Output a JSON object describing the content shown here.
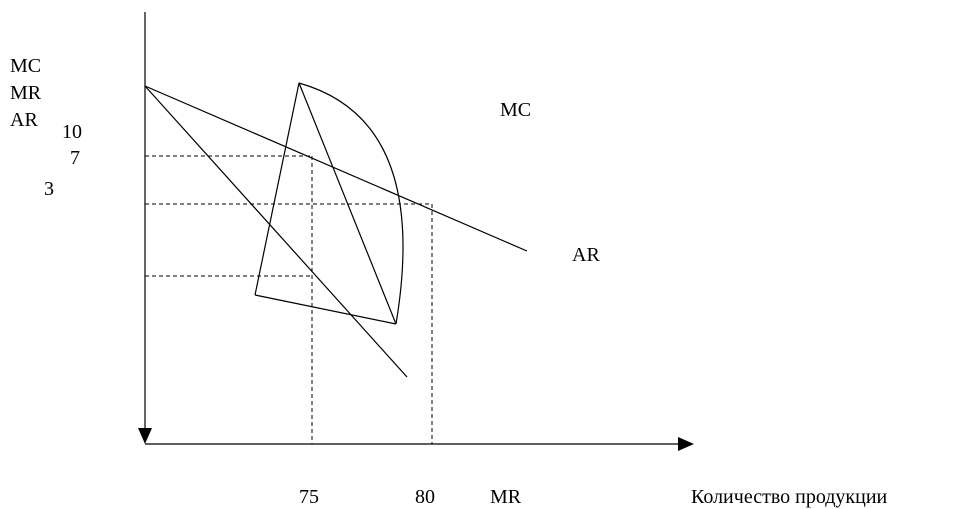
{
  "y_axis": {
    "label_lines": [
      "MC",
      "MR",
      "AR"
    ],
    "tick_labels": [
      "10",
      "7",
      "3"
    ]
  },
  "x_axis": {
    "tick_labels": [
      "75",
      "80"
    ],
    "title": "Количество продукции"
  },
  "curves": {
    "mc_label": "MC",
    "ar_label": "AR",
    "mr_label": "MR"
  },
  "colors": {
    "line": "#000000",
    "background": "#ffffff"
  }
}
